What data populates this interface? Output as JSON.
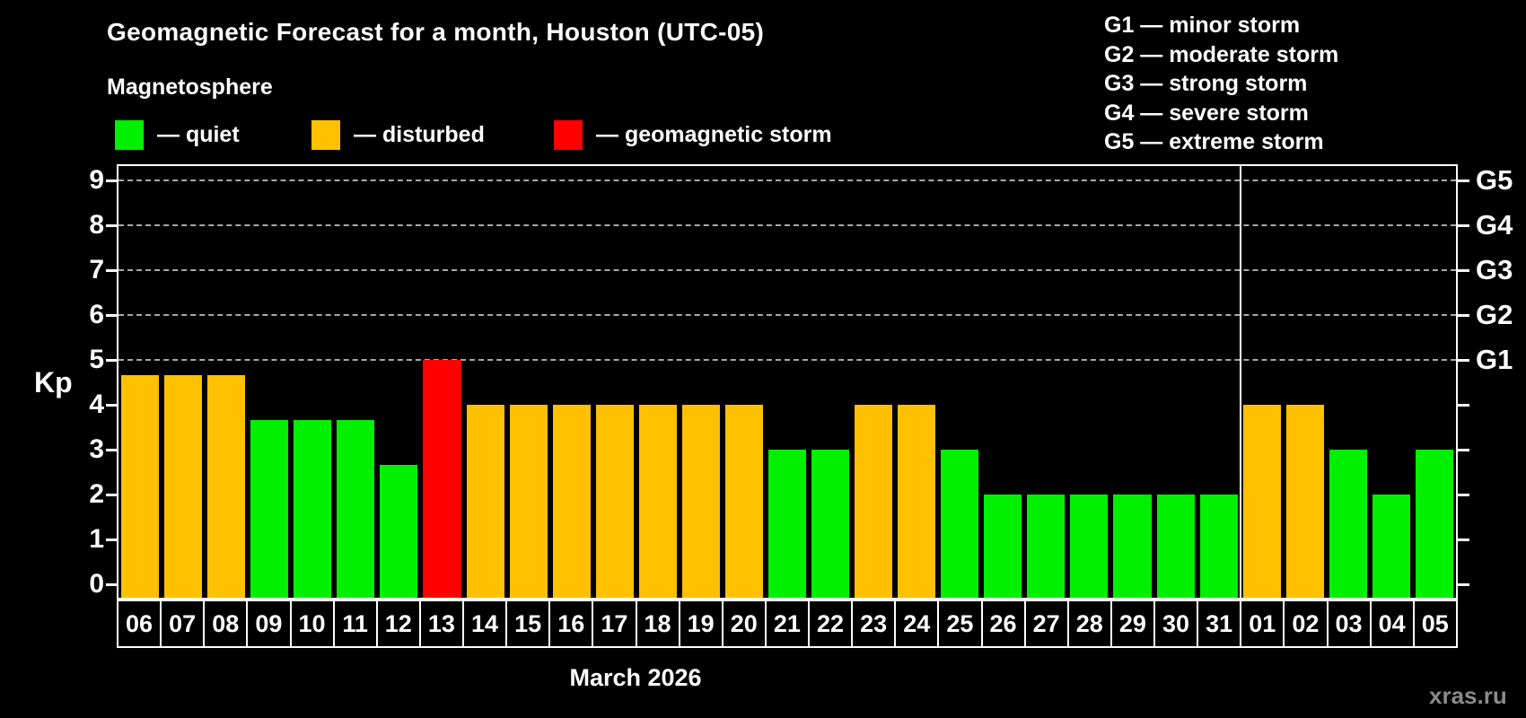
{
  "header": {
    "title": "Geomagnetic Forecast for a month, Houston (UTC-05)",
    "subtitle": "Magnetosphere"
  },
  "legend": {
    "items": [
      {
        "key": "quiet",
        "label": "— quiet",
        "color": "#00F000"
      },
      {
        "key": "disturbed",
        "label": "— disturbed",
        "color": "#FFC000"
      },
      {
        "key": "storm",
        "label": "— geomagnetic storm",
        "color": "#FF0000"
      }
    ]
  },
  "g_legend": {
    "items": [
      "G1 — minor storm",
      "G2 — moderate storm",
      "G3 — strong storm",
      "G4 — severe storm",
      "G5 — extreme storm"
    ]
  },
  "footer": {
    "x_axis_title": "March 2026",
    "watermark": "xras.ru"
  },
  "chart_data": {
    "type": "bar",
    "title": "Geomagnetic Forecast for a month, Houston (UTC-05)",
    "ylabel": "Kp",
    "xlabel": "March 2026",
    "ylim": [
      0,
      9
    ],
    "grid": "dashed horizontal at storm levels only",
    "y_ticks": [
      0,
      1,
      2,
      3,
      4,
      5,
      6,
      7,
      8,
      9
    ],
    "gridlines_at_kp": [
      5,
      6,
      7,
      8,
      9
    ],
    "right_axis_labels": [
      {
        "kp": 5,
        "label": "G1"
      },
      {
        "kp": 6,
        "label": "G2"
      },
      {
        "kp": 7,
        "label": "G3"
      },
      {
        "kp": 8,
        "label": "G4"
      },
      {
        "kp": 9,
        "label": "G5"
      }
    ],
    "legend_position": "top",
    "categories": [
      "06",
      "07",
      "08",
      "09",
      "10",
      "11",
      "12",
      "13",
      "14",
      "15",
      "16",
      "17",
      "18",
      "19",
      "20",
      "21",
      "22",
      "23",
      "24",
      "25",
      "26",
      "27",
      "28",
      "29",
      "30",
      "31",
      "01",
      "02",
      "03",
      "04",
      "05"
    ],
    "values": [
      4.67,
      4.67,
      4.67,
      3.67,
      3.67,
      3.67,
      2.67,
      5.0,
      4.0,
      4.0,
      4.0,
      4.0,
      4.0,
      4.0,
      4.0,
      3.0,
      3.0,
      4.0,
      4.0,
      3.0,
      2.0,
      2.0,
      2.0,
      2.0,
      2.0,
      2.0,
      4.0,
      4.0,
      3.0,
      2.0,
      3.0
    ],
    "states": [
      "disturbed",
      "disturbed",
      "disturbed",
      "quiet",
      "quiet",
      "quiet",
      "quiet",
      "storm",
      "disturbed",
      "disturbed",
      "disturbed",
      "disturbed",
      "disturbed",
      "disturbed",
      "disturbed",
      "quiet",
      "quiet",
      "disturbed",
      "disturbed",
      "quiet",
      "quiet",
      "quiet",
      "quiet",
      "quiet",
      "quiet",
      "quiet",
      "disturbed",
      "disturbed",
      "quiet",
      "quiet",
      "quiet"
    ],
    "month_separator_before_index": 26
  }
}
